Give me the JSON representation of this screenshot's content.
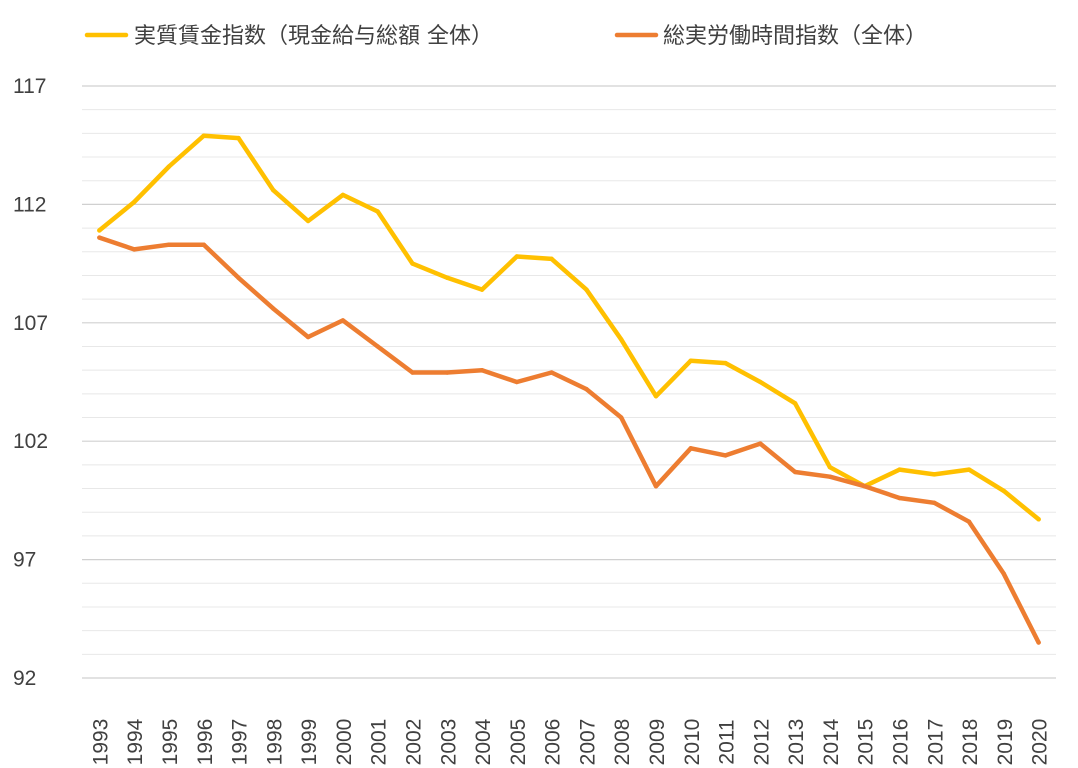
{
  "chart_data": {
    "type": "line",
    "title": "",
    "xlabel": "",
    "ylabel": "",
    "legend_position": "top",
    "grid": true,
    "ylim": [
      92,
      117
    ],
    "yticks": [
      "117",
      "112",
      "107",
      "102",
      "97",
      "92"
    ],
    "categories": [
      "1993",
      "1994",
      "1995",
      "1996",
      "1997",
      "1998",
      "1999",
      "2000",
      "2001",
      "2002",
      "2003",
      "2004",
      "2005",
      "2006",
      "2007",
      "2008",
      "2009",
      "2010",
      "2011",
      "2012",
      "2013",
      "2014",
      "2015",
      "2016",
      "2017",
      "2018",
      "2019",
      "2020"
    ],
    "series": [
      {
        "name": "実質賃金指数（現金給与総額 全体）",
        "color": "#FFC000",
        "values": [
          110.9,
          112.1,
          113.6,
          114.9,
          114.8,
          112.6,
          111.3,
          112.4,
          111.7,
          109.5,
          108.9,
          108.4,
          109.8,
          109.7,
          108.4,
          106.3,
          103.9,
          105.4,
          105.3,
          104.5,
          103.6,
          100.9,
          100.1,
          100.8,
          100.6,
          100.8,
          99.9,
          98.7
        ]
      },
      {
        "name": "総実労働時間指数（全体）",
        "color": "#ED7D31",
        "values": [
          110.6,
          110.1,
          110.3,
          110.3,
          108.9,
          107.6,
          106.4,
          107.1,
          106.0,
          104.9,
          104.9,
          105.0,
          104.5,
          104.9,
          104.2,
          103.0,
          100.1,
          101.7,
          101.4,
          101.9,
          100.7,
          100.5,
          100.1,
          99.6,
          99.4,
          98.6,
          96.4,
          93.5
        ]
      }
    ]
  }
}
